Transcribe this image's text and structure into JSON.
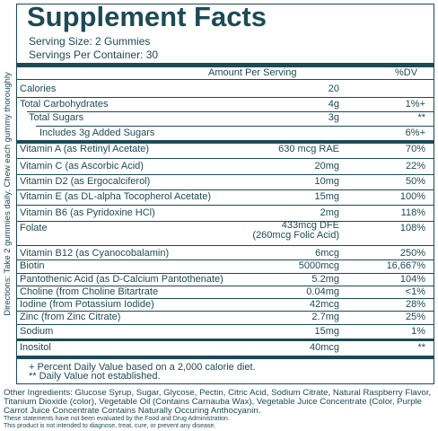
{
  "header": {
    "title": "Supplement Facts",
    "serving_size": "Serving Size: 2 Gummies",
    "servings_per_container": "Servings Per Container: 30"
  },
  "table": {
    "columns": [
      "Amount Per Serving",
      "%DV"
    ],
    "rows": [
      {
        "name": "Calories",
        "amount": "20",
        "dv": ""
      },
      {
        "name": "Total Carbohydrates",
        "amount": "4g",
        "dv": "1%+"
      },
      {
        "name": "Total Sugars",
        "amount": "3g",
        "dv": "**"
      },
      {
        "name": "Includes 3g Added Sugars",
        "amount": "",
        "dv": "6%+"
      },
      {
        "name": "Vitamin A (as Retinyl Acetate)",
        "amount": "630 mcg RAE",
        "dv": "70%"
      },
      {
        "name": "Vitamin C (as Ascorbic Acid)",
        "amount": "20mg",
        "dv": "22%"
      },
      {
        "name": "Vitamin D2 (as Ergocalciferol)",
        "amount": "10mg",
        "dv": "50%"
      },
      {
        "name": "Vitamin E (as DL-alpha Tocopherol Acetate)",
        "amount": "15mg",
        "dv": "100%"
      },
      {
        "name": "Vitamin B6 (as Pyridoxine HCl)",
        "amount": "2mg",
        "dv": "118%"
      },
      {
        "name": "Folate",
        "amount": "433mcg DFE",
        "amount_note": "(260mcg Folic Acid)",
        "dv": "108%"
      },
      {
        "name": "Vitamin B12 (as Cyanocobalamin)",
        "amount": "6mcg",
        "dv": "250%"
      },
      {
        "name": "Biotin",
        "amount": "5000mcg",
        "dv": "16,667%"
      },
      {
        "name": "Pantothenic Acid (as D-Calcium Pantothenate)",
        "amount": "5.2mg",
        "dv": "104%"
      },
      {
        "name": "Choline (from Choline Bitartrate",
        "amount": "0.04mg",
        "dv": "<1%"
      },
      {
        "name": "Iodine (from Potassium Iodide)",
        "amount": "42mcg",
        "dv": "28%"
      },
      {
        "name": "Zinc (from Zinc Citrate)",
        "amount": "2.7mg",
        "dv": "25%"
      },
      {
        "name": "Sodium",
        "amount": "15mg",
        "dv": "1%"
      },
      {
        "name": "Inositol",
        "amount": "40mcg",
        "dv": "**"
      }
    ]
  },
  "footnotes": [
    "+ Percent Daily Value based on a 2,000 calorie diet.",
    "** Daily Value not established."
  ],
  "directions": "Directions: Take 2 gummies daily. Chew each gummy thoroughly",
  "other_ingredients": "Other Ingredients: Glucose Syrup, Sugar, Glycose, Pectin, Citric Acid, Sodium Citrate, Natural Raspberry Flavor, Titanium Dioxide (color), Vegetable Oil (Contains Carnauba Wax), Vegetable Juice Concentrate (Color, Purple Carrot Juice Concentrate Contains Naturally Occuring Anthocyanin.",
  "disclaimers": [
    "These statements have not been evaluated by the Food and Drug Administration.",
    "This product is not intended to diagnose, treat, cure, or prevent any disease."
  ]
}
